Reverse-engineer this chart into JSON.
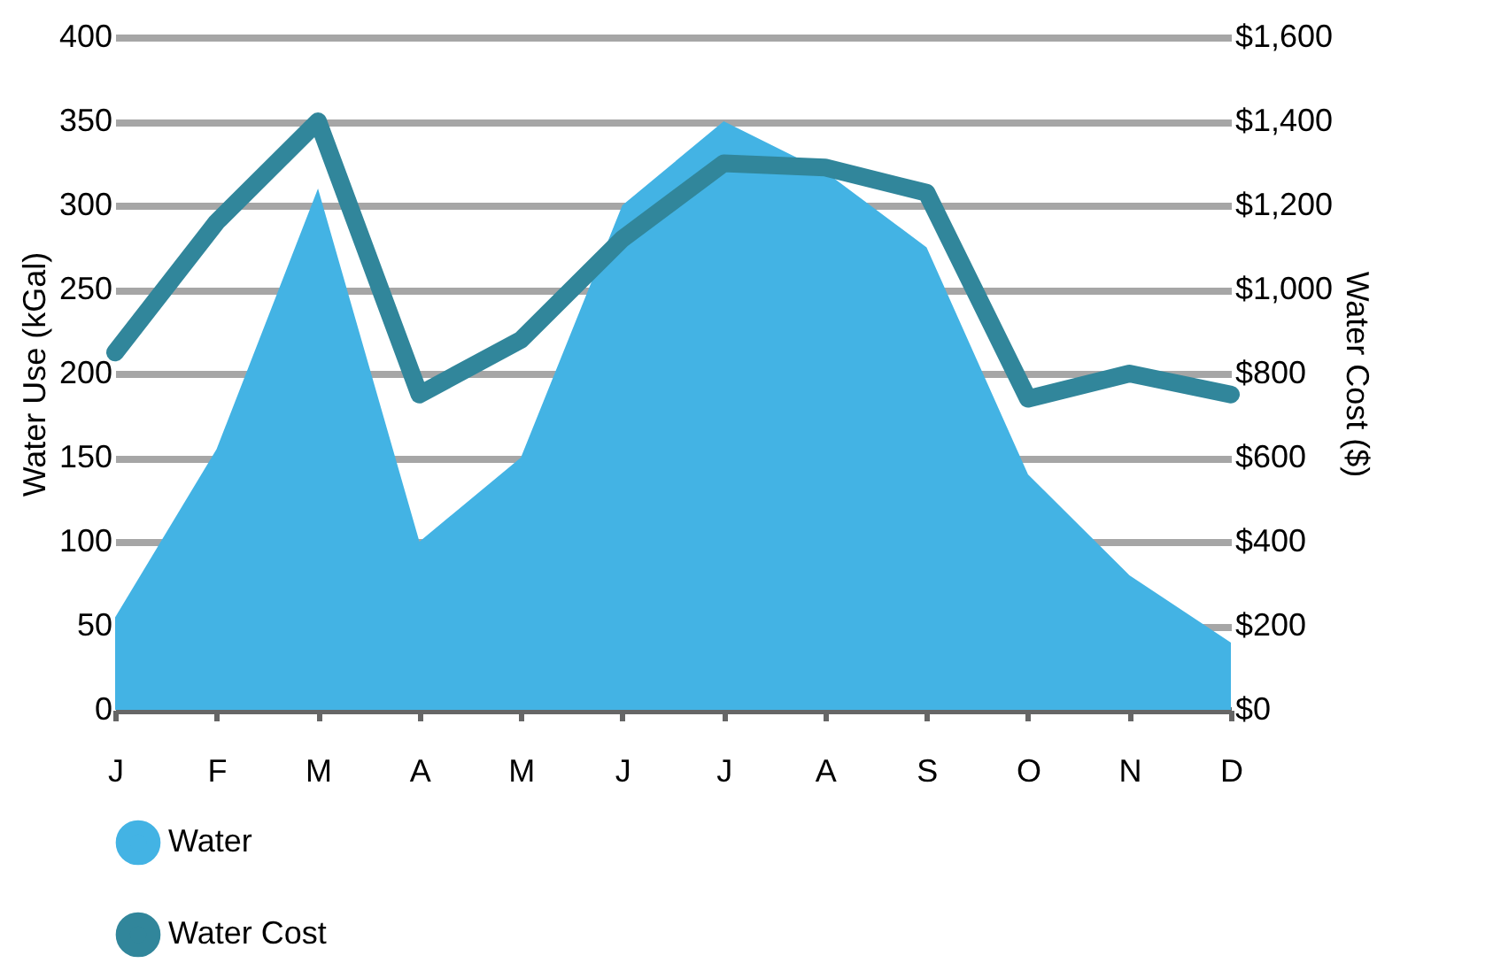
{
  "chart_data": {
    "type": "area",
    "xlabel": null,
    "ylabel": "Water Use (kGal)",
    "y2label": "Water Cost ($)",
    "categories": [
      "J",
      "F",
      "M",
      "A",
      "M",
      "J",
      "J",
      "A",
      "S",
      "O",
      "N",
      "D"
    ],
    "series": [
      {
        "name": "Water",
        "color": "#43b3e4",
        "values": [
          55,
          155,
          310,
          100,
          150,
          300,
          350,
          320,
          275,
          140,
          80,
          40
        ]
      },
      {
        "name": "Water Cost",
        "type": "line",
        "axis": "y2",
        "color": "#31869b",
        "values": [
          850,
          1160,
          1400,
          750,
          880,
          1120,
          1300,
          1290,
          1230,
          740,
          800,
          750
        ]
      }
    ],
    "ylim": [
      0,
      400
    ],
    "yticks": [
      0,
      50,
      100,
      150,
      200,
      250,
      300,
      350,
      400
    ],
    "y2lim": [
      0,
      1600
    ],
    "y2ticks": [
      {
        "value": 0,
        "label": "$0"
      },
      {
        "value": 200,
        "label": "$200"
      },
      {
        "value": 400,
        "label": "$400"
      },
      {
        "value": 600,
        "label": "$600"
      },
      {
        "value": 800,
        "label": "$800"
      },
      {
        "value": 1000,
        "label": "$1,000"
      },
      {
        "value": 1200,
        "label": "$1,200"
      },
      {
        "value": 1400,
        "label": "$1,400"
      },
      {
        "value": 1600,
        "label": "$1,600"
      }
    ],
    "grid": "y",
    "legend": "bottom",
    "line_style": "solid"
  }
}
